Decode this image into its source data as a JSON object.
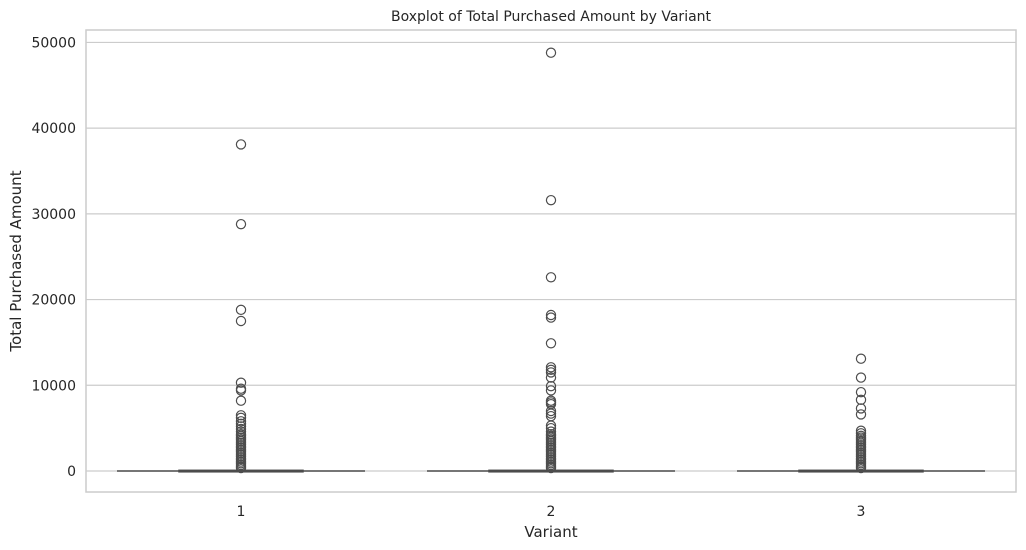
{
  "chart_data": {
    "type": "box",
    "title": "Boxplot of Total Purchased Amount by Variant",
    "xlabel": "Variant",
    "ylabel": "Total Purchased Amount",
    "categories": [
      "1",
      "2",
      "3"
    ],
    "ylim": [
      -2450,
      51450
    ],
    "yticks": [
      0,
      10000,
      20000,
      30000,
      40000,
      50000
    ],
    "grid": "y",
    "colors": {
      "box_line": "#4d4d4d",
      "grid": "#cccccc",
      "spine": "#cccccc",
      "text": "#262626"
    },
    "boxes": [
      {
        "category": "1",
        "min": 0,
        "q1": 0,
        "median": 0,
        "q3": 80,
        "max": 200
      },
      {
        "category": "2",
        "min": 0,
        "q1": 0,
        "median": 0,
        "q3": 80,
        "max": 200
      },
      {
        "category": "3",
        "min": 0,
        "q1": 0,
        "median": 0,
        "q3": 80,
        "max": 200
      }
    ],
    "outliers": [
      [
        38100,
        28800,
        18800,
        17500,
        10300,
        9600,
        9400,
        8200,
        6500,
        6200,
        5800,
        5500,
        5200,
        4900,
        4600,
        4300,
        4100,
        3900,
        3700,
        3500,
        3300,
        3100,
        2900,
        2700,
        2500,
        2300,
        2100,
        1900,
        1700,
        1500,
        1300,
        1100,
        900,
        700,
        500,
        350
      ],
      [
        48800,
        31600,
        22600,
        18200,
        17900,
        14900,
        12100,
        11800,
        11500,
        10900,
        9900,
        9400,
        8200,
        8000,
        7800,
        7000,
        6700,
        6400,
        5300,
        5000,
        4600,
        4300,
        4100,
        3900,
        3700,
        3500,
        3300,
        3100,
        2900,
        2700,
        2500,
        2300,
        2100,
        1900,
        1700,
        1500,
        1300,
        1100,
        900,
        700,
        500,
        350
      ],
      [
        13100,
        10900,
        9200,
        8300,
        7300,
        6600,
        4700,
        4400,
        4100,
        3900,
        3700,
        3500,
        3300,
        3100,
        2900,
        2700,
        2500,
        2300,
        2100,
        1900,
        1700,
        1500,
        1300,
        1100,
        900,
        700,
        500,
        350
      ]
    ]
  }
}
